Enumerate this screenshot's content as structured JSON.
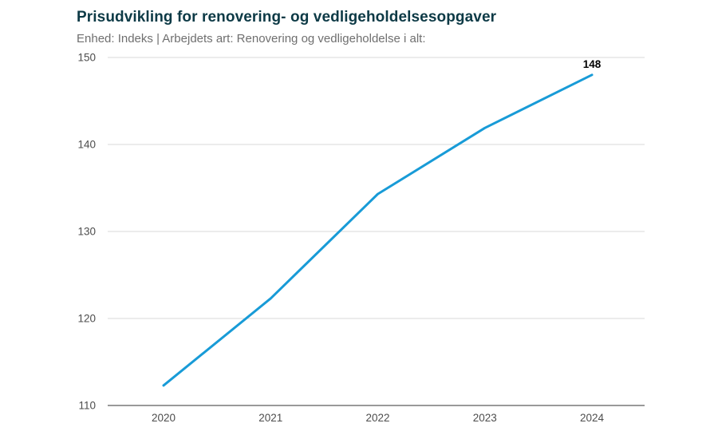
{
  "chart_data": {
    "type": "line",
    "title": "Prisudvikling for renovering- og vedligeholdelsesopgaver",
    "subtitle": "Enhed: Indeks | Arbejdets art: Renovering og vedligeholdelse i alt:",
    "categories": [
      "2020",
      "2021",
      "2022",
      "2023",
      "2024"
    ],
    "values": [
      112.3,
      122.3,
      134.3,
      141.9,
      148
    ],
    "end_label": "148",
    "xlabel": "",
    "ylabel": "",
    "ylim": [
      110,
      150
    ],
    "yticks": [
      110,
      120,
      130,
      140,
      150
    ],
    "grid": true,
    "legend": "none",
    "colors": {
      "line": "#189bd7",
      "title": "#0d3a46",
      "subtitle": "#6f6f6f",
      "tick_text": "#4d4d4d",
      "grid": "#d9d9d9",
      "axis": "#999999"
    }
  }
}
